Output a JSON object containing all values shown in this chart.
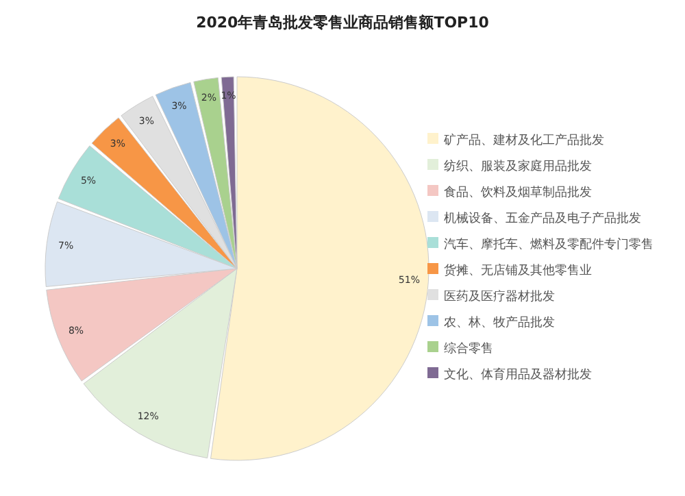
{
  "chart_data": {
    "type": "pie",
    "title": "2020年青岛批发零售业商品销售额TOP10",
    "categories": [
      "矿产品、建材及化工产品批发",
      "纺织、服装及家庭用品批发",
      "食品、饮料及烟草制品批发",
      "机械设备、五金产品及电子产品批发",
      "汽车、摩托车、燃料及零配件专门零售",
      "货摊、无店铺及其他零售业",
      "医药及医疗器材批发",
      "农、林、牧产品批发",
      "综合零售",
      "文化、体育用品及器材批发"
    ],
    "values": [
      51,
      12,
      8,
      7,
      5,
      3,
      3,
      3,
      2,
      1
    ],
    "colors": [
      "#fff2cc",
      "#e2efda",
      "#f4c7c3",
      "#dce6f2",
      "#a9dfd8",
      "#f79646",
      "#e0e0e0",
      "#9dc3e6",
      "#a9d18e",
      "#7f6a93"
    ],
    "value_labels": [
      "51%",
      "12%",
      "8%",
      "7%",
      "5%",
      "3%",
      "3%",
      "3%",
      "2%",
      "1%"
    ],
    "legend": "right"
  }
}
